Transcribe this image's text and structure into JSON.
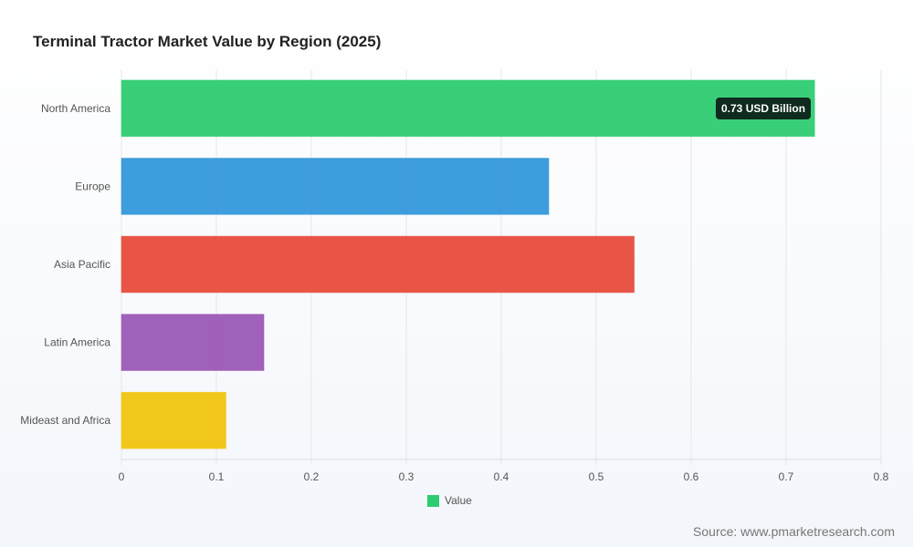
{
  "chart_data": {
    "type": "bar",
    "orientation": "horizontal",
    "title": "Terminal Tractor Market Value by Region (2025)",
    "categories": [
      "North America",
      "Europe",
      "Asia Pacific",
      "Latin America",
      "Mideast and Africa"
    ],
    "series": [
      {
        "name": "Value",
        "values": [
          0.73,
          0.45,
          0.54,
          0.15,
          0.11
        ],
        "colors": [
          "#2ecc71",
          "#3498db",
          "#e74c3c",
          "#9b59b6",
          "#f1c40f"
        ]
      }
    ],
    "xlim": [
      0,
      0.8
    ],
    "xticks": [
      "0",
      "0.1",
      "0.2",
      "0.3",
      "0.4",
      "0.5",
      "0.6",
      "0.7",
      "0.8"
    ],
    "grid": true,
    "legend_position": "bottom",
    "tooltip": "0.73 USD Billion"
  },
  "legend": {
    "label": "Value",
    "color": "#2ecc71"
  },
  "source": "Source: www.pmarketresearch.com"
}
